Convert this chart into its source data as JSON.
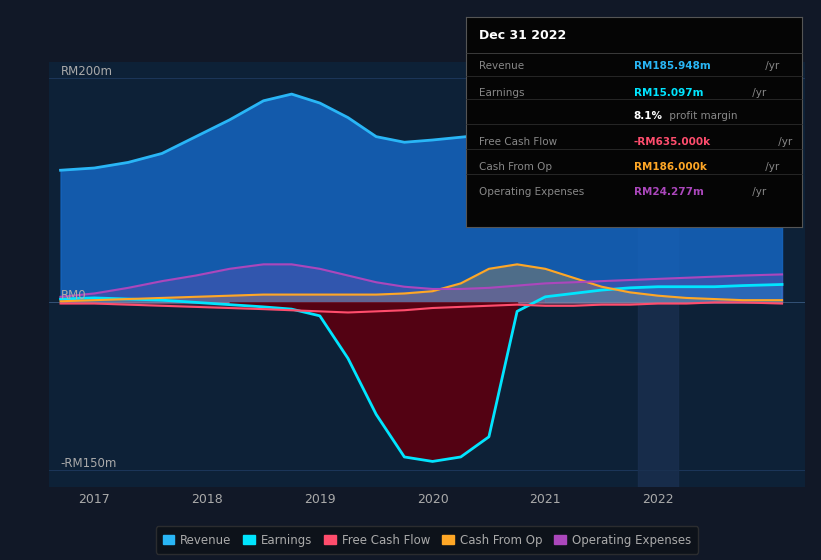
{
  "bg_color": "#111827",
  "plot_bg_color": "#0d2137",
  "grid_color": "#1e3a5f",
  "text_color": "#aaaaaa",
  "ylim": [
    -165,
    215
  ],
  "xlim": [
    2016.6,
    2023.3
  ],
  "revenue_color": "#29b6f6",
  "revenue_fill": "#1565c0",
  "earnings_color": "#00e5ff",
  "earnings_fill_neg": "#5a0010",
  "fcf_color": "#ff4d6d",
  "cashop_color": "#ffa726",
  "opex_color": "#ab47bc",
  "revenue_x": [
    2016.7,
    2017.0,
    2017.3,
    2017.6,
    2017.9,
    2018.2,
    2018.5,
    2018.75,
    2019.0,
    2019.25,
    2019.5,
    2019.75,
    2020.0,
    2020.3,
    2020.6,
    2020.9,
    2021.2,
    2021.5,
    2021.75,
    2022.0,
    2022.25,
    2022.5,
    2022.75,
    2023.1
  ],
  "revenue_y": [
    118,
    120,
    125,
    133,
    148,
    163,
    180,
    186,
    178,
    165,
    148,
    143,
    145,
    148,
    152,
    156,
    162,
    168,
    172,
    173,
    172,
    175,
    183,
    196
  ],
  "earnings_x": [
    2016.7,
    2017.0,
    2017.3,
    2017.6,
    2017.9,
    2018.2,
    2018.5,
    2018.75,
    2019.0,
    2019.25,
    2019.5,
    2019.75,
    2020.0,
    2020.25,
    2020.5,
    2020.75,
    2021.0,
    2021.25,
    2021.5,
    2021.75,
    2022.0,
    2022.25,
    2022.5,
    2022.75,
    2023.1
  ],
  "earnings_y": [
    3,
    4,
    3,
    2,
    0,
    -2,
    -4,
    -6,
    -12,
    -50,
    -100,
    -138,
    -142,
    -138,
    -120,
    -8,
    5,
    8,
    11,
    13,
    14,
    14,
    14,
    15,
    16
  ],
  "fcf_x": [
    2016.7,
    2017.0,
    2017.3,
    2017.6,
    2017.9,
    2018.2,
    2018.5,
    2018.75,
    2019.0,
    2019.25,
    2019.5,
    2019.75,
    2020.0,
    2020.25,
    2020.5,
    2020.75,
    2021.0,
    2021.25,
    2021.5,
    2021.75,
    2022.0,
    2022.25,
    2022.5,
    2022.75,
    2023.1
  ],
  "fcf_y": [
    -1,
    -1,
    -2,
    -3,
    -4,
    -5,
    -6,
    -7,
    -8,
    -9,
    -8,
    -7,
    -5,
    -4,
    -3,
    -2,
    -3,
    -3,
    -2,
    -2,
    -1,
    -1,
    0,
    0,
    -1
  ],
  "cashop_x": [
    2016.7,
    2017.0,
    2017.3,
    2017.6,
    2017.9,
    2018.2,
    2018.5,
    2018.75,
    2019.0,
    2019.25,
    2019.5,
    2019.75,
    2020.0,
    2020.25,
    2020.5,
    2020.75,
    2021.0,
    2021.25,
    2021.5,
    2021.75,
    2022.0,
    2022.25,
    2022.5,
    2022.75,
    2023.1
  ],
  "cashop_y": [
    1,
    2,
    3,
    4,
    5,
    6,
    7,
    7,
    7,
    7,
    7,
    8,
    10,
    17,
    30,
    34,
    30,
    22,
    14,
    9,
    6,
    4,
    3,
    2,
    2
  ],
  "opex_x": [
    2016.7,
    2017.0,
    2017.3,
    2017.6,
    2017.9,
    2018.2,
    2018.5,
    2018.75,
    2019.0,
    2019.25,
    2019.5,
    2019.75,
    2020.0,
    2020.25,
    2020.5,
    2020.75,
    2021.0,
    2021.25,
    2021.5,
    2021.75,
    2022.0,
    2022.25,
    2022.5,
    2022.75,
    2023.1
  ],
  "opex_y": [
    5,
    8,
    13,
    19,
    24,
    30,
    34,
    34,
    30,
    24,
    18,
    14,
    12,
    12,
    13,
    15,
    17,
    18,
    19,
    20,
    21,
    22,
    23,
    24,
    25
  ],
  "legend": [
    {
      "label": "Revenue",
      "color": "#29b6f6"
    },
    {
      "label": "Earnings",
      "color": "#00e5ff"
    },
    {
      "label": "Free Cash Flow",
      "color": "#ff4d6d"
    },
    {
      "label": "Cash From Op",
      "color": "#ffa726"
    },
    {
      "label": "Operating Expenses",
      "color": "#ab47bc"
    }
  ],
  "tooltip_title": "Dec 31 2022",
  "tooltip_rows": [
    {
      "label": "Revenue",
      "value": "RM185.948m",
      "suffix": " /yr",
      "value_color": "#29b6f6"
    },
    {
      "label": "Earnings",
      "value": "RM15.097m",
      "suffix": " /yr",
      "value_color": "#00e5ff"
    },
    {
      "label": "",
      "value_bold": "8.1%",
      "value_rest": " profit margin",
      "value_color": "#ffffff"
    },
    {
      "label": "Free Cash Flow",
      "value": "-RM635.000k",
      "suffix": " /yr",
      "value_color": "#ff4d6d"
    },
    {
      "label": "Cash From Op",
      "value": "RM186.000k",
      "suffix": " /yr",
      "value_color": "#ffa726"
    },
    {
      "label": "Operating Expenses",
      "value": "RM24.277m",
      "suffix": " /yr",
      "value_color": "#ab47bc"
    }
  ],
  "vline_x": 2022.0,
  "xticks": [
    2017,
    2018,
    2019,
    2020,
    2021,
    2022
  ],
  "ylabel_200": "RM200m",
  "ylabel_0": "RM0",
  "ylabel_n150": "-RM150m"
}
